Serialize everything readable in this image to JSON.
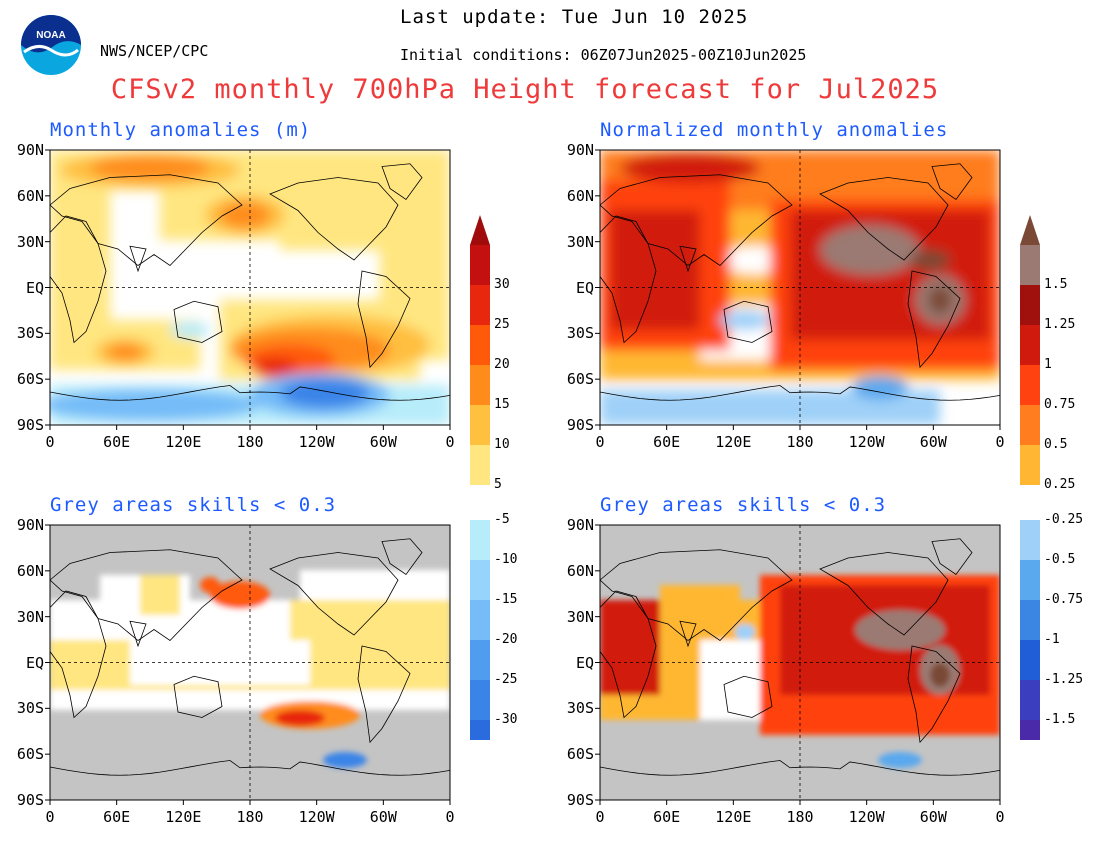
{
  "header": {
    "last_update": "Last update: Tue Jun 10 2025",
    "source": "NWS/NCEP/CPC",
    "init": "Initial conditions: 06Z07Jun2025-00Z10Jun2025",
    "title": "CFSv2 monthly 700hPa Height forecast for Jul2025",
    "logo_text": "NOAA"
  },
  "panels": [
    {
      "title": "Monthly anomalies (m)"
    },
    {
      "title": "Normalized monthly anomalies"
    },
    {
      "title": "Grey areas skills < 0.3"
    },
    {
      "title": "Grey areas skills < 0.3"
    }
  ],
  "lat_labels": [
    "90N",
    "60N",
    "30N",
    "EQ",
    "30S",
    "60S",
    "90S"
  ],
  "lon_labels": [
    "0",
    "60E",
    "120E",
    "180",
    "120W",
    "60W",
    "0"
  ],
  "colorbar_left": {
    "pos_labels": [
      "5",
      "10",
      "15",
      "20",
      "25",
      "30"
    ],
    "neg_labels": [
      "-5",
      "-10",
      "-15",
      "-20",
      "-25",
      "-30"
    ],
    "pos_colors": [
      "#ffe680",
      "#ffbf3f",
      "#ff8c1a",
      "#ff5a0a",
      "#e8280e",
      "#c4100e"
    ],
    "top_color": "#a00c0c",
    "neg_colors": [
      "#b7ecfa",
      "#96d4fb",
      "#75bcf8",
      "#509df0",
      "#3a84e8",
      "#2a6cdd"
    ],
    "bottom_color": "#1f5ed6"
  },
  "colorbar_right": {
    "pos_labels": [
      "0.25",
      "0.5",
      "0.75",
      "1",
      "1.25",
      "1.5"
    ],
    "neg_labels": [
      "-0.25",
      "-0.5",
      "-0.75",
      "-1",
      "-1.25",
      "-1.5"
    ],
    "pos_colors": [
      "#ffb733",
      "#ff7d1f",
      "#ff4210",
      "#d11a0e",
      "#a0100c",
      "#9a7a72"
    ],
    "top_color": "#7a4a36",
    "neg_colors": [
      "#9fd0f8",
      "#5aa8ee",
      "#3a86e2",
      "#1f5ed6",
      "#3b3fbf",
      "#4a2aa8"
    ],
    "bottom_color": "#2a16a0"
  },
  "map_colors": {
    "land_grey": "#c4c4c4",
    "white": "#ffffff"
  }
}
